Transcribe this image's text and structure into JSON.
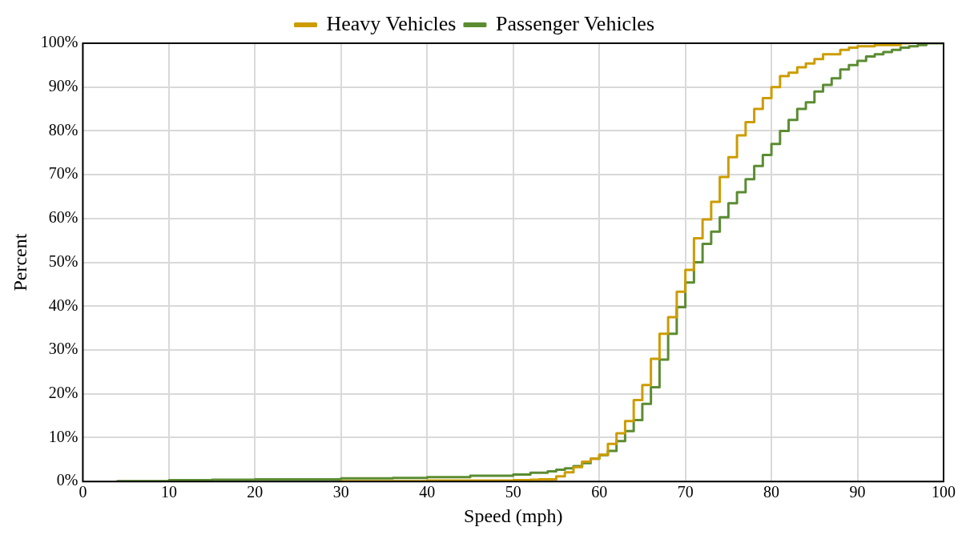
{
  "chart_data": {
    "type": "step",
    "xlabel": "Speed (mph)",
    "ylabel": "Percent",
    "legend": "top",
    "grid": true,
    "marker": "none",
    "line_style": "solid",
    "xlim": [
      0,
      100
    ],
    "xticks": [
      0,
      10,
      20,
      30,
      40,
      50,
      60,
      70,
      80,
      90,
      100
    ],
    "ylim": [
      0,
      100
    ],
    "yticks": [
      {
        "value": 0,
        "label": "0%"
      },
      {
        "value": 10,
        "label": "10%"
      },
      {
        "value": 20,
        "label": "20%"
      },
      {
        "value": 30,
        "label": "30%"
      },
      {
        "value": 40,
        "label": "40%"
      },
      {
        "value": 50,
        "label": "50%"
      },
      {
        "value": 60,
        "label": "60%"
      },
      {
        "value": 70,
        "label": "70%"
      },
      {
        "value": 80,
        "label": "80%"
      },
      {
        "value": 90,
        "label": "90%"
      },
      {
        "value": 100,
        "label": "100%"
      }
    ],
    "series": [
      {
        "name": "Heavy Vehicles",
        "color": "#cc9c00",
        "x": [
          30,
          40,
          50,
          52,
          53,
          54,
          55,
          56,
          57,
          58,
          59,
          60,
          61,
          62,
          63,
          64,
          65,
          66,
          67,
          68,
          69,
          70,
          71,
          72,
          73,
          74,
          75,
          76,
          77,
          78,
          79,
          80,
          81,
          82,
          83,
          84,
          85,
          86,
          87,
          88,
          89,
          90,
          92,
          95,
          96
        ],
        "values": [
          0,
          0.1,
          0.2,
          0.3,
          0.4,
          0.5,
          0.5,
          1.2,
          2.1,
          3.3,
          4.5,
          5.2,
          6.1,
          8.6,
          11,
          13.8,
          18.6,
          22,
          28,
          33.7,
          37.5,
          43.3,
          48.3,
          55.5,
          59.8,
          63.8,
          69.5,
          74,
          79,
          82,
          85,
          87.5,
          90,
          92.5,
          93.3,
          94.5,
          95.4,
          96.4,
          97.5,
          97.5,
          98.5,
          99,
          99.3,
          99.6,
          100
        ]
      },
      {
        "name": "Passenger Vehicles",
        "color": "#5b8c32",
        "x": [
          4,
          10,
          15,
          20,
          30,
          36,
          40,
          45,
          50,
          52,
          54,
          55,
          56,
          57,
          58,
          59,
          60,
          61,
          62,
          63,
          64,
          65,
          66,
          67,
          68,
          69,
          70,
          71,
          72,
          73,
          74,
          75,
          76,
          77,
          78,
          79,
          80,
          81,
          82,
          83,
          84,
          85,
          86,
          87,
          88,
          89,
          90,
          91,
          92,
          93,
          94,
          95,
          96,
          97,
          98,
          99,
          100
        ],
        "values": [
          0,
          0.1,
          0.3,
          0.4,
          0.5,
          0.7,
          0.8,
          1,
          1.3,
          1.6,
          2,
          2.3,
          2.7,
          3,
          3.5,
          4.2,
          5.2,
          6,
          7,
          9.2,
          11.5,
          14,
          17.7,
          21.5,
          27.8,
          33.7,
          39.8,
          45.4,
          50,
          54.2,
          57,
          60.3,
          63.5,
          66,
          69,
          72,
          74.5,
          77,
          80,
          82.5,
          85,
          86.5,
          89,
          90.5,
          92,
          94,
          95,
          96,
          97,
          97.5,
          98,
          98.5,
          99,
          99.3,
          99.6,
          100,
          100
        ]
      }
    ]
  }
}
